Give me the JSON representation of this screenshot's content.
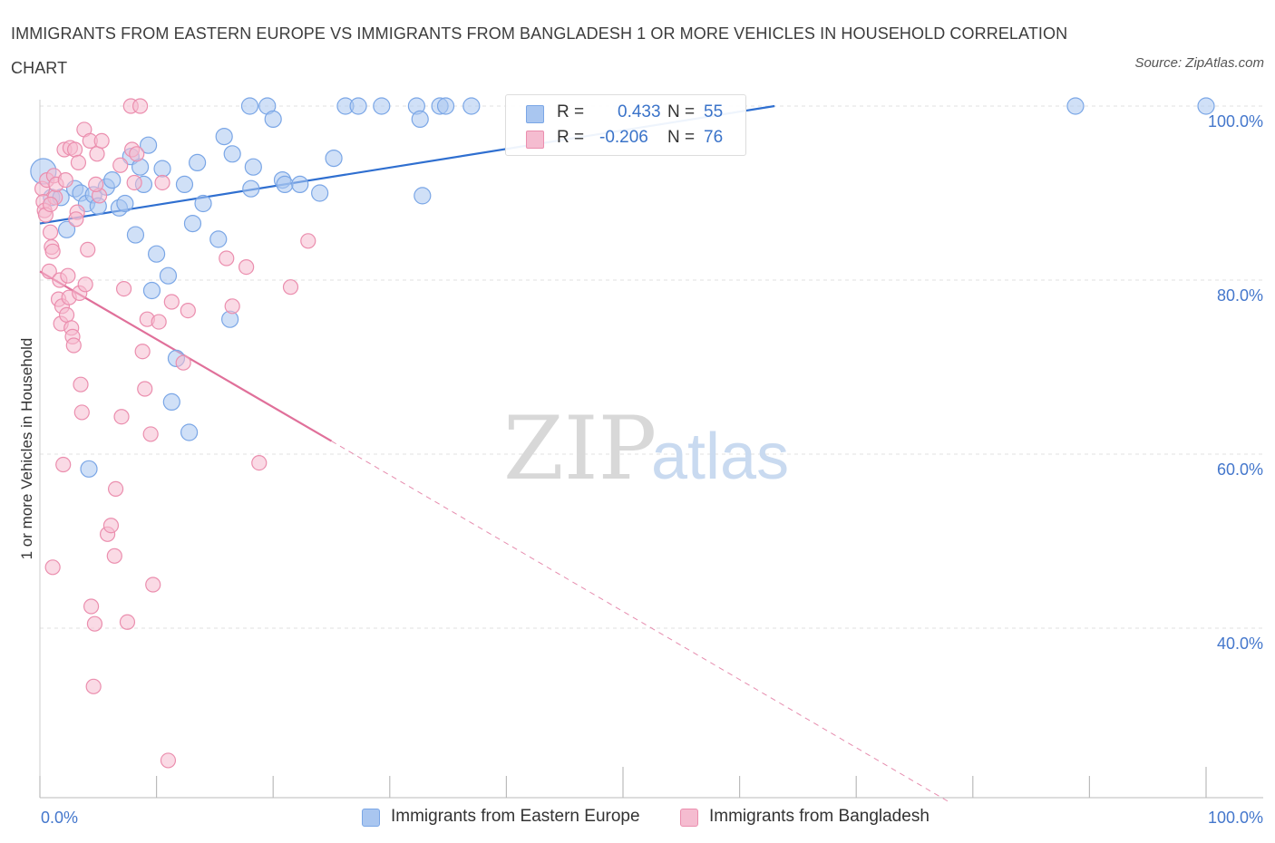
{
  "title": "IMMIGRANTS FROM EASTERN EUROPE VS IMMIGRANTS FROM BANGLADESH 1 OR MORE VEHICLES IN HOUSEHOLD CORRELATION CHART",
  "source": "Source: ZipAtlas.com",
  "watermark": {
    "zip": "ZIP",
    "atlas": "atlas"
  },
  "legend": {
    "r_label": "R =",
    "n_label": "N =",
    "items": [
      {
        "name": "Immigrants from Eastern Europe",
        "r": "0.433",
        "n": "55"
      },
      {
        "name": "Immigrants from Bangladesh",
        "r": "-0.206",
        "n": "76"
      }
    ]
  },
  "chart_data": {
    "type": "scatter",
    "title": "IMMIGRANTS FROM EASTERN EUROPE VS IMMIGRANTS FROM BANGLADESH 1 OR MORE VEHICLES IN HOUSEHOLD CORRELATION CHART",
    "xlabel": "",
    "ylabel": "1 or more Vehicles in Household",
    "xlim": [
      0,
      100
    ],
    "ylim": [
      20,
      102
    ],
    "x_tick_labels": [
      {
        "value": 0,
        "label": "0.0%"
      },
      {
        "value": 100,
        "label": "100.0%"
      }
    ],
    "y_tick_labels": [
      {
        "value": 100,
        "label": "100.0%"
      },
      {
        "value": 80,
        "label": "80.0%"
      },
      {
        "value": 60,
        "label": "60.0%"
      },
      {
        "value": 40,
        "label": "40.0%"
      }
    ],
    "x_minor_ticks": [
      0,
      10,
      20,
      30,
      40,
      50,
      60,
      70,
      80,
      90,
      100
    ],
    "grid": true,
    "series": [
      {
        "name": "Immigrants from Eastern Europe",
        "color": "#7aa6e6",
        "fill": "#a9c6f0",
        "line_color": "#2f6fd0",
        "r": 0.433,
        "n": 55,
        "trend": {
          "x0": 0,
          "y0": 86.5,
          "x1": 63,
          "y1": 100,
          "dashed_to": null
        },
        "points": [
          [
            0.3,
            92.5,
            14
          ],
          [
            1.0,
            89.5,
            9
          ],
          [
            1.8,
            89.5,
            9
          ],
          [
            2.3,
            85.8,
            9
          ],
          [
            3.0,
            90.5,
            9
          ],
          [
            3.5,
            90.0,
            9
          ],
          [
            4.0,
            88.8,
            9
          ],
          [
            4.2,
            58.3,
            9
          ],
          [
            4.6,
            89.8,
            9
          ],
          [
            5.0,
            88.5,
            9
          ],
          [
            5.7,
            90.7,
            9
          ],
          [
            6.2,
            91.5,
            9
          ],
          [
            6.8,
            88.3,
            9
          ],
          [
            7.3,
            88.8,
            9
          ],
          [
            7.8,
            94.2,
            9
          ],
          [
            8.2,
            85.2,
            9
          ],
          [
            8.6,
            93.0,
            9
          ],
          [
            8.9,
            91.0,
            9
          ],
          [
            9.3,
            95.5,
            9
          ],
          [
            9.6,
            78.8,
            9
          ],
          [
            10.0,
            83.0,
            9
          ],
          [
            10.5,
            92.8,
            9
          ],
          [
            11.0,
            80.5,
            9
          ],
          [
            11.3,
            66.0,
            9
          ],
          [
            11.7,
            71.0,
            9
          ],
          [
            12.4,
            91.0,
            9
          ],
          [
            12.8,
            62.5,
            9
          ],
          [
            13.1,
            86.5,
            9
          ],
          [
            13.5,
            93.5,
            9
          ],
          [
            14.0,
            88.8,
            9
          ],
          [
            15.3,
            84.7,
            9
          ],
          [
            15.8,
            96.5,
            9
          ],
          [
            16.3,
            75.5,
            9
          ],
          [
            16.5,
            94.5,
            9
          ],
          [
            18.1,
            90.5,
            9
          ],
          [
            18.3,
            93.0,
            9
          ],
          [
            18.0,
            100.0,
            9
          ],
          [
            19.5,
            100.0,
            9
          ],
          [
            20.0,
            98.5,
            9
          ],
          [
            20.8,
            91.5,
            9
          ],
          [
            21.0,
            91.0,
            9
          ],
          [
            22.3,
            91.0,
            9
          ],
          [
            24.0,
            90.0,
            9
          ],
          [
            25.2,
            94.0,
            9
          ],
          [
            26.2,
            100.0,
            9
          ],
          [
            27.3,
            100.0,
            9
          ],
          [
            29.3,
            100.0,
            9
          ],
          [
            32.3,
            100.0,
            9
          ],
          [
            32.6,
            98.5,
            9
          ],
          [
            32.8,
            89.7,
            9
          ],
          [
            34.3,
            100.0,
            9
          ],
          [
            34.8,
            100.0,
            9
          ],
          [
            37.0,
            100.0,
            9
          ],
          [
            88.8,
            100.0,
            9
          ],
          [
            100.0,
            100.0,
            9
          ]
        ]
      },
      {
        "name": "Immigrants from Bangladesh",
        "color": "#eb8eae",
        "fill": "#f5bcd0",
        "line_color": "#e0709a",
        "r": -0.206,
        "n": 76,
        "trend": {
          "x0": 0,
          "y0": 81.0,
          "x1": 25,
          "y1": 61.5,
          "dashed_to": {
            "x": 78,
            "y": 20
          }
        },
        "points": [
          [
            0.2,
            90.5,
            8
          ],
          [
            0.3,
            89.0,
            8
          ],
          [
            0.4,
            88.0,
            8
          ],
          [
            0.5,
            87.5,
            8
          ],
          [
            0.6,
            91.5,
            8
          ],
          [
            0.8,
            81.0,
            8
          ],
          [
            0.9,
            85.5,
            8
          ],
          [
            1.0,
            83.8,
            8
          ],
          [
            1.1,
            83.3,
            8
          ],
          [
            1.2,
            92.0,
            8
          ],
          [
            1.3,
            89.5,
            8
          ],
          [
            1.4,
            91.0,
            8
          ],
          [
            1.6,
            77.8,
            8
          ],
          [
            1.7,
            80.0,
            8
          ],
          [
            1.8,
            75.0,
            8
          ],
          [
            1.9,
            77.0,
            8
          ],
          [
            2.0,
            58.8,
            8
          ],
          [
            2.1,
            95.0,
            8
          ],
          [
            2.2,
            91.5,
            8
          ],
          [
            2.3,
            76.0,
            8
          ],
          [
            2.4,
            80.5,
            8
          ],
          [
            2.5,
            78.0,
            8
          ],
          [
            2.6,
            95.2,
            8
          ],
          [
            2.7,
            74.5,
            8
          ],
          [
            2.8,
            73.5,
            8
          ],
          [
            2.9,
            72.5,
            8
          ],
          [
            3.0,
            95.0,
            8
          ],
          [
            3.2,
            87.8,
            8
          ],
          [
            3.3,
            93.5,
            8
          ],
          [
            3.4,
            78.5,
            8
          ],
          [
            3.5,
            68.0,
            8
          ],
          [
            3.6,
            64.8,
            8
          ],
          [
            3.8,
            97.3,
            8
          ],
          [
            3.9,
            79.5,
            8
          ],
          [
            4.1,
            83.5,
            8
          ],
          [
            4.3,
            96.0,
            8
          ],
          [
            4.4,
            42.5,
            8
          ],
          [
            4.6,
            33.3,
            8
          ],
          [
            4.7,
            40.5,
            8
          ],
          [
            4.9,
            94.5,
            8
          ],
          [
            5.1,
            89.7,
            8
          ],
          [
            5.3,
            96.0,
            8
          ],
          [
            5.8,
            50.8,
            8
          ],
          [
            6.1,
            51.8,
            8
          ],
          [
            6.4,
            48.3,
            8
          ],
          [
            6.5,
            56.0,
            8
          ],
          [
            6.9,
            93.2,
            8
          ],
          [
            7.0,
            64.3,
            8
          ],
          [
            7.2,
            79.0,
            8
          ],
          [
            7.5,
            40.7,
            8
          ],
          [
            7.8,
            100.0,
            8
          ],
          [
            7.9,
            95.0,
            8
          ],
          [
            8.1,
            91.2,
            8
          ],
          [
            8.3,
            94.5,
            8
          ],
          [
            8.6,
            100.0,
            8
          ],
          [
            8.8,
            71.8,
            8
          ],
          [
            9.0,
            67.5,
            8
          ],
          [
            9.2,
            75.5,
            8
          ],
          [
            9.5,
            62.3,
            8
          ],
          [
            9.7,
            45.0,
            8
          ],
          [
            10.2,
            75.2,
            8
          ],
          [
            10.5,
            91.2,
            8
          ],
          [
            11.0,
            24.8,
            8
          ],
          [
            11.3,
            77.5,
            8
          ],
          [
            12.3,
            70.5,
            8
          ],
          [
            12.7,
            76.5,
            8
          ],
          [
            16.0,
            82.5,
            8
          ],
          [
            16.5,
            77.0,
            8
          ],
          [
            17.7,
            81.5,
            8
          ],
          [
            18.8,
            59.0,
            8
          ],
          [
            21.5,
            79.2,
            8
          ],
          [
            23.0,
            84.5,
            8
          ],
          [
            1.1,
            47.0,
            8
          ],
          [
            3.1,
            87.0,
            8
          ],
          [
            4.8,
            91.0,
            8
          ],
          [
            0.9,
            88.7,
            8
          ]
        ]
      }
    ]
  }
}
